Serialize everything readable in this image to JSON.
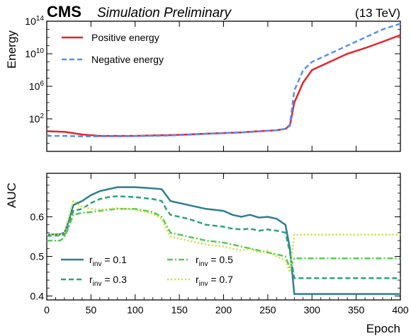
{
  "header": {
    "brand": "CMS",
    "subtitle": "Simulation Preliminary",
    "energy_label": "(13 TeV)"
  },
  "chart_data": [
    {
      "type": "line",
      "panel": "top",
      "ylabel": "Energy",
      "xlabel": "",
      "yscale": "log",
      "ylim": [
        0.01,
        100000000000000.0
      ],
      "xlim": [
        0,
        400
      ],
      "yticks": [
        100,
        1000000,
        10000000000,
        100000000000000.0
      ],
      "ytick_labels": [
        {
          "base": "10",
          "exp": "2"
        },
        {
          "base": "10",
          "exp": "6"
        },
        {
          "base": "10",
          "exp": "10"
        },
        {
          "base": "10",
          "exp": "14"
        }
      ],
      "legend_position": "top-left",
      "series": [
        {
          "name": "Positive energy",
          "color": "#e3242b",
          "style": "solid",
          "x": [
            0,
            20,
            40,
            60,
            80,
            100,
            120,
            140,
            160,
            180,
            200,
            220,
            240,
            260,
            270,
            275,
            280,
            290,
            300,
            320,
            340,
            360,
            380,
            400
          ],
          "y": [
            3,
            2.5,
            1.2,
            0.8,
            0.8,
            0.8,
            0.9,
            1.0,
            1.2,
            1.5,
            1.8,
            2.2,
            3,
            4,
            6,
            15,
            10000.0,
            3000000.0,
            100000000.0,
            1000000000.0,
            10000000000.0,
            50000000000.0,
            300000000000.0,
            2000000000000.0
          ]
        },
        {
          "name": "Negative energy",
          "color": "#5790fc",
          "style": "dashed",
          "x": [
            0,
            20,
            40,
            60,
            80,
            100,
            120,
            140,
            160,
            180,
            200,
            220,
            240,
            260,
            270,
            275,
            280,
            290,
            300,
            320,
            340,
            360,
            380,
            400
          ],
          "y": [
            0.8,
            0.8,
            0.7,
            0.7,
            0.7,
            0.75,
            0.8,
            0.9,
            1.1,
            1.4,
            1.7,
            2.1,
            2.8,
            4,
            6,
            20,
            300000.0,
            100000000.0,
            1000000000.0,
            10000000000.0,
            100000000000.0,
            1000000000000.0,
            10000000000000.0,
            50000000000000.0
          ]
        }
      ]
    },
    {
      "type": "line",
      "panel": "bottom",
      "ylabel": "AUC",
      "xlabel": "Epoch",
      "ylim": [
        0.39,
        0.71
      ],
      "xlim": [
        0,
        400
      ],
      "yticks": [
        0.4,
        0.5,
        0.6
      ],
      "xticks": [
        0,
        50,
        100,
        150,
        200,
        250,
        300,
        350,
        400
      ],
      "legend_position": "bottom-left",
      "series": [
        {
          "name": "0.1",
          "color": "#2e7f8f",
          "style": "solid",
          "x": [
            0,
            15,
            20,
            25,
            30,
            40,
            50,
            60,
            70,
            80,
            100,
            120,
            130,
            135,
            140,
            150,
            160,
            180,
            200,
            210,
            220,
            230,
            240,
            250,
            260,
            270,
            275,
            280,
            400
          ],
          "y": [
            0.555,
            0.556,
            0.56,
            0.59,
            0.63,
            0.64,
            0.655,
            0.665,
            0.67,
            0.675,
            0.675,
            0.672,
            0.67,
            0.655,
            0.64,
            0.635,
            0.63,
            0.62,
            0.615,
            0.605,
            0.6,
            0.605,
            0.598,
            0.6,
            0.595,
            0.58,
            0.52,
            0.405,
            0.405
          ]
        },
        {
          "name": "0.3",
          "color": "#2e9f7f",
          "style": "dashed",
          "x": [
            0,
            15,
            20,
            25,
            30,
            40,
            50,
            60,
            70,
            80,
            100,
            120,
            130,
            135,
            140,
            150,
            160,
            180,
            200,
            210,
            220,
            230,
            240,
            250,
            260,
            270,
            275,
            280,
            400
          ],
          "y": [
            0.552,
            0.553,
            0.555,
            0.58,
            0.615,
            0.62,
            0.635,
            0.645,
            0.65,
            0.652,
            0.65,
            0.645,
            0.64,
            0.62,
            0.605,
            0.6,
            0.595,
            0.58,
            0.575,
            0.57,
            0.568,
            0.57,
            0.565,
            0.568,
            0.565,
            0.56,
            0.51,
            0.445,
            0.445
          ]
        },
        {
          "name": "0.5",
          "color": "#59c853",
          "style": "dashdot",
          "x": [
            0,
            15,
            20,
            25,
            30,
            40,
            50,
            60,
            70,
            80,
            100,
            120,
            130,
            135,
            140,
            150,
            160,
            180,
            200,
            210,
            220,
            230,
            240,
            250,
            260,
            270,
            275,
            280,
            400
          ],
          "y": [
            0.54,
            0.54,
            0.548,
            0.575,
            0.605,
            0.61,
            0.612,
            0.615,
            0.618,
            0.62,
            0.62,
            0.612,
            0.6,
            0.58,
            0.56,
            0.555,
            0.55,
            0.54,
            0.535,
            0.53,
            0.525,
            0.52,
            0.515,
            0.51,
            0.505,
            0.5,
            0.47,
            0.495,
            0.495
          ]
        },
        {
          "name": "0.7",
          "color": "#c4e033",
          "style": "dotted",
          "x": [
            0,
            15,
            20,
            25,
            30,
            40,
            50,
            60,
            70,
            80,
            100,
            120,
            130,
            135,
            140,
            150,
            160,
            180,
            200,
            210,
            220,
            230,
            240,
            250,
            260,
            270,
            275,
            280,
            400
          ],
          "y": [
            0.555,
            0.555,
            0.56,
            0.6,
            0.64,
            0.625,
            0.62,
            0.618,
            0.62,
            0.622,
            0.618,
            0.608,
            0.595,
            0.57,
            0.55,
            0.545,
            0.54,
            0.53,
            0.525,
            0.52,
            0.515,
            0.52,
            0.51,
            0.515,
            0.5,
            0.49,
            0.46,
            0.555,
            0.555
          ]
        }
      ]
    }
  ],
  "legend_prefix": {
    "symbol": "r",
    "subscript": "inv",
    "eq": " = "
  }
}
